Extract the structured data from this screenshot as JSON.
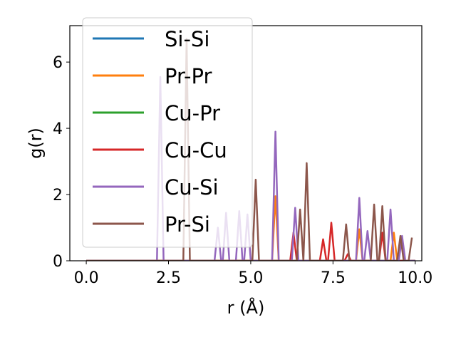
{
  "chart_data": {
    "type": "line",
    "xlabel": "r (Å)",
    "ylabel": "g(r)",
    "xlim": [
      -0.5,
      10.2
    ],
    "ylim": [
      0,
      7.1
    ],
    "xticks": [
      0.0,
      2.5,
      5.0,
      7.5,
      10.0
    ],
    "xtick_labels": [
      "0.0",
      "2.5",
      "5.0",
      "7.5",
      "10.0"
    ],
    "yticks": [
      0,
      2,
      4,
      6
    ],
    "ytick_labels": [
      "0",
      "2",
      "4",
      "6"
    ],
    "grid": false,
    "legend_position": "upper-left",
    "series": [
      {
        "name": "Si-Si",
        "color": "#1f77b4",
        "x": [
          0.0,
          10.0
        ],
        "y": [
          0,
          0
        ]
      },
      {
        "name": "Pr-Pr",
        "color": "#ff7f0e",
        "x": [
          0.0,
          5.65,
          5.75,
          5.85,
          8.2,
          8.3,
          8.4,
          9.25,
          9.35,
          9.45,
          10.0
        ],
        "y": [
          0,
          0,
          1.95,
          0,
          0,
          0.95,
          0,
          0,
          0.85,
          0,
          0
        ]
      },
      {
        "name": "Cu-Pr",
        "color": "#2ca02c",
        "x": [
          0.0,
          10.0
        ],
        "y": [
          0,
          0
        ]
      },
      {
        "name": "Cu-Cu",
        "color": "#d62728",
        "x": [
          0.0,
          6.2,
          6.3,
          6.4,
          7.1,
          7.2,
          7.3,
          7.35,
          7.45,
          7.55,
          7.85,
          7.95,
          8.05,
          8.9,
          9.0,
          9.1,
          10.0
        ],
        "y": [
          0,
          0,
          0.85,
          0,
          0,
          0.65,
          0,
          0,
          1.15,
          0,
          0,
          0.2,
          0,
          0,
          0.85,
          0,
          0
        ]
      },
      {
        "name": "Cu-Si",
        "color": "#9467bd",
        "x": [
          0.0,
          2.15,
          2.25,
          2.35,
          3.9,
          4.0,
          4.1,
          4.15,
          4.25,
          4.35,
          4.55,
          4.65,
          4.75,
          4.8,
          4.9,
          5.0,
          5.65,
          5.75,
          5.85,
          6.25,
          6.35,
          6.45,
          8.2,
          8.3,
          8.4,
          8.45,
          8.55,
          8.65,
          9.15,
          9.25,
          9.35,
          9.5,
          9.6,
          9.7,
          10.0
        ],
        "y": [
          0,
          0,
          5.55,
          0,
          0,
          1.0,
          0,
          0,
          1.45,
          0,
          0,
          1.5,
          0,
          0,
          1.4,
          0,
          0,
          3.9,
          0,
          0,
          1.6,
          0,
          0,
          1.9,
          0,
          0,
          0.9,
          0,
          0,
          1.55,
          0,
          0,
          0.75,
          0,
          0
        ]
      },
      {
        "name": "Pr-Si",
        "color": "#8c564b",
        "x": [
          0.0,
          2.95,
          3.05,
          3.15,
          5.05,
          5.15,
          5.25,
          6.4,
          6.5,
          6.6,
          6.6,
          6.7,
          6.8,
          7.8,
          7.9,
          8.0,
          8.65,
          8.75,
          8.85,
          8.9,
          9.0,
          9.1,
          9.45,
          9.55,
          9.65,
          9.8,
          9.9
        ],
        "y": [
          0,
          0,
          6.7,
          0,
          0,
          2.45,
          0,
          0,
          1.55,
          0,
          0,
          2.95,
          0,
          0,
          1.1,
          0,
          0,
          1.7,
          0,
          0,
          1.65,
          0,
          0,
          0.75,
          0,
          0,
          0.7
        ]
      }
    ]
  }
}
